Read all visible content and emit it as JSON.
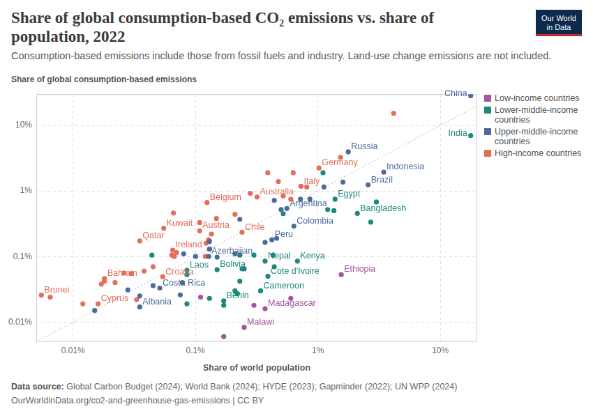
{
  "chart_data": {
    "type": "scatter",
    "title": "Share of global consumption-based CO₂ emissions vs. share of population, 2022",
    "subtitle": "Consumption-based emissions include those from fossil fuels and industry. Land-use change emissions are not included.",
    "y_label": "Share of global consumption-based emissions",
    "x_label": "Share of world population",
    "log": true,
    "grid": true,
    "legend": "right",
    "xlim": [
      0.005,
      20
    ],
    "ylim": [
      0.005,
      30
    ],
    "xticks": [
      {
        "value": 0.01,
        "label": "0.01%"
      },
      {
        "value": 0.1,
        "label": "0.1%"
      },
      {
        "value": 1,
        "label": "1%"
      },
      {
        "value": 10,
        "label": "10%"
      }
    ],
    "yticks": [
      {
        "value": 0.01,
        "label": "0.01%"
      },
      {
        "value": 0.1,
        "label": "0.1%"
      },
      {
        "value": 1,
        "label": "1%"
      },
      {
        "value": 10,
        "label": "10%"
      }
    ],
    "series": [
      {
        "name": "Low-income countries",
        "color": "#a2559c",
        "x": [
          1.55,
          0.37,
          0.25,
          0.6,
          0.3,
          0.11,
          0.17
        ],
        "values": [
          0.053,
          0.016,
          0.0083,
          0.023,
          0.018,
          0.024,
          0.006
        ],
        "labels": [
          "Ethiopia",
          "Madagascar",
          "Malawi",
          null,
          null,
          null,
          null
        ]
      },
      {
        "name": "Lower-middle-income countries",
        "color": "#1b8a7a",
        "x": [
          17.7,
          1.38,
          1.1,
          1.2,
          1.35,
          3.0,
          2.1,
          2.7,
          0.52,
          0.37,
          0.43,
          0.3,
          0.23,
          0.68,
          0.39,
          0.24,
          0.15,
          0.085,
          0.085,
          0.044,
          0.23,
          0.34,
          0.21,
          0.22,
          0.17,
          0.17,
          0.13,
          0.085,
          0.44
        ],
        "values": [
          7.0,
          0.75,
          1.9,
          0.52,
          0.5,
          0.68,
          0.455,
          0.335,
          0.45,
          0.085,
          0.105,
          0.105,
          0.105,
          0.085,
          0.05,
          0.065,
          0.063,
          0.062,
          0.053,
          0.105,
          0.042,
          0.03,
          0.03,
          0.027,
          0.021,
          0.018,
          0.023,
          0.019,
          0.07
        ],
        "labels": [
          "India",
          "Egypt",
          null,
          null,
          null,
          null,
          "Bangladesh",
          null,
          null,
          "Nepal",
          null,
          null,
          null,
          "Kenya",
          "Cote d'Ivoire",
          null,
          "Bolivia",
          "Laos",
          null,
          null,
          null,
          "Cameroon",
          null,
          null,
          "Benin",
          null,
          null,
          null,
          null
        ]
      },
      {
        "name": "Upper-middle-income countries",
        "color": "#4c6a9c",
        "x": [
          17.7,
          1.77,
          3.45,
          2.57,
          1.6,
          1.12,
          0.86,
          0.72,
          0.44,
          0.557,
          0.5,
          0.636,
          0.23,
          0.42,
          0.37,
          0.46,
          0.128,
          0.15,
          0.1,
          0.13,
          0.08,
          0.21,
          0.13,
          0.25,
          0.051,
          0.045,
          0.078,
          0.028,
          0.035,
          0.035,
          0.015,
          0.075
        ],
        "values": [
          28.4,
          3.96,
          1.94,
          1.24,
          1.37,
          1.15,
          0.75,
          0.75,
          0.72,
          0.54,
          0.52,
          0.291,
          0.37,
          0.18,
          0.165,
          0.19,
          0.1,
          0.098,
          0.1,
          0.17,
          0.11,
          0.11,
          0.13,
          0.065,
          0.033,
          0.036,
          0.04,
          0.031,
          0.025,
          0.017,
          0.015,
          0.026
        ],
        "labels": [
          "China",
          "Russia",
          "Indonesia",
          "Brazil",
          null,
          null,
          null,
          null,
          null,
          "Argentina",
          null,
          "Colombia",
          null,
          "Peru",
          null,
          null,
          "Azerbaijan",
          null,
          null,
          null,
          null,
          null,
          null,
          null,
          "Costa Rica",
          null,
          null,
          null,
          null,
          "Albania",
          null,
          null
        ]
      },
      {
        "name": "High-income countries",
        "color": "#e56e5a",
        "x": [
          4.15,
          1.53,
          1.02,
          0.389,
          0.628,
          0.475,
          0.727,
          0.81,
          0.318,
          0.28,
          0.52,
          0.6,
          0.124,
          0.21,
          0.148,
          0.055,
          0.066,
          0.108,
          0.108,
          0.24,
          0.135,
          0.035,
          0.128,
          0.065,
          0.07,
          0.064,
          0.067,
          0.13,
          0.122,
          0.045,
          0.054,
          0.038,
          0.03,
          0.018,
          0.018,
          0.026,
          0.022,
          0.017,
          0.0055,
          0.0065,
          0.016,
          0.012,
          0.033,
          0.12
        ],
        "values": [
          15.3,
          3.27,
          2.24,
          1.9,
          1.9,
          1.39,
          1.18,
          1.15,
          0.81,
          0.92,
          0.84,
          0.75,
          0.668,
          0.44,
          0.38,
          0.271,
          0.46,
          0.33,
          0.247,
          0.235,
          0.22,
          0.173,
          0.18,
          0.125,
          0.115,
          0.105,
          0.1,
          0.13,
          0.16,
          0.07,
          0.049,
          0.06,
          0.055,
          0.046,
          0.042,
          0.056,
          0.04,
          0.038,
          0.0258,
          0.024,
          0.019,
          0.019,
          0.022,
          0.1
        ],
        "labels": [
          null,
          null,
          "Germany",
          null,
          null,
          null,
          "Italy",
          null,
          "Australia",
          null,
          null,
          null,
          "Belgium",
          null,
          null,
          "Kuwait",
          null,
          null,
          "Austria",
          "Chile",
          null,
          "Qatar",
          null,
          "Ireland",
          null,
          null,
          null,
          null,
          null,
          null,
          "Croatia",
          null,
          null,
          "Bahrain",
          null,
          null,
          null,
          null,
          "Brunei",
          null,
          "Cyprus",
          null,
          null,
          null
        ]
      }
    ],
    "source_label": "Data source:",
    "source": "Global Carbon Budget (2024); World Bank (2024); HYDE (2023); Gapminder (2022); UN WPP (2024)",
    "footer": "OurWorldinData.org/co2-and-greenhouse-gas-emissions | CC BY",
    "logo": [
      "Our World",
      "in Data"
    ]
  }
}
